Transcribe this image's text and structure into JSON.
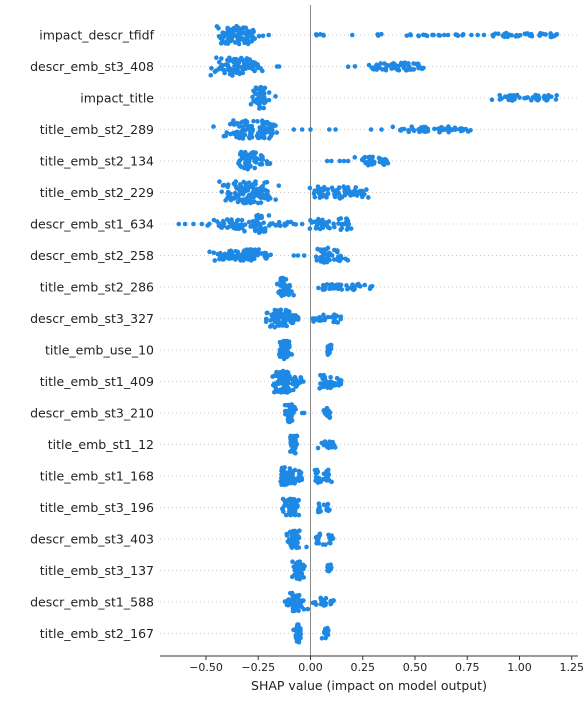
{
  "chart_data": {
    "type": "scatter",
    "title": "",
    "xlabel": "SHAP value (impact on model output)",
    "ylabel": "",
    "xlim": [
      -0.72,
      1.28
    ],
    "xticks": [
      -0.5,
      -0.25,
      0.0,
      0.25,
      0.5,
      0.75,
      1.0,
      1.25
    ],
    "xtick_labels": [
      "−0.50",
      "−0.25",
      "0.00",
      "0.25",
      "0.50",
      "0.75",
      "1.00",
      "1.25"
    ],
    "grid": false,
    "legend": "none",
    "point_color": "#1e88e5",
    "zero_line_color": "#888888",
    "row_guide_color": "#cccccc",
    "features": [
      {
        "name": "impact_descr_tfidf",
        "clusters": [
          [
            -0.36,
            0.06,
            70,
            9
          ],
          [
            -0.3,
            0.05,
            25,
            5
          ],
          [
            0.04,
            0.02,
            6,
            1
          ],
          [
            0.33,
            0.01,
            3,
            1
          ],
          [
            0.47,
            0.01,
            3,
            1
          ],
          [
            0.52,
            0.02,
            3,
            1
          ],
          [
            0.6,
            0.03,
            5,
            1
          ],
          [
            0.72,
            0.03,
            6,
            1
          ],
          [
            0.92,
            0.05,
            15,
            2
          ],
          [
            1.06,
            0.06,
            18,
            2
          ],
          [
            1.15,
            0.02,
            7,
            2
          ]
        ],
        "singles": [
          -0.2,
          0.2,
          0.55,
          0.64,
          0.7,
          0.77,
          0.8,
          0.83
        ]
      },
      {
        "name": "descr_emb_st3_408",
        "clusters": [
          [
            -0.36,
            0.07,
            80,
            9
          ],
          [
            -0.27,
            0.03,
            15,
            5
          ],
          [
            0.2,
            0.01,
            2,
            1
          ],
          [
            0.31,
            0.03,
            14,
            3
          ],
          [
            0.42,
            0.05,
            35,
            4
          ],
          [
            0.5,
            0.03,
            15,
            3
          ]
        ],
        "singles": [
          -0.16,
          -0.15
        ]
      },
      {
        "name": "impact_title",
        "clusters": [
          [
            -0.24,
            0.02,
            45,
            11
          ],
          [
            -0.2,
            0.03,
            6,
            3
          ],
          [
            0.97,
            0.07,
            25,
            3
          ],
          [
            1.08,
            0.05,
            15,
            3
          ],
          [
            1.15,
            0.03,
            8,
            3
          ]
        ],
        "singles": []
      },
      {
        "name": "title_emb_st2_289",
        "clusters": [
          [
            -0.28,
            0.08,
            90,
            9
          ],
          [
            -0.2,
            0.03,
            12,
            4
          ],
          [
            0.55,
            0.1,
            40,
            3
          ],
          [
            0.7,
            0.03,
            12,
            2
          ]
        ],
        "singles": [
          -0.08,
          -0.04,
          0.0,
          0.09,
          0.12,
          0.29,
          0.34
        ]
      },
      {
        "name": "title_emb_st2_134",
        "clusters": [
          [
            -0.3,
            0.04,
            55,
            9
          ],
          [
            -0.22,
            0.03,
            10,
            4
          ],
          [
            0.28,
            0.03,
            25,
            5
          ],
          [
            0.35,
            0.02,
            12,
            4
          ]
        ],
        "singles": [
          0.08,
          0.1,
          0.14,
          0.16,
          0.18
        ]
      },
      {
        "name": "title_emb_st2_229",
        "clusters": [
          [
            -0.32,
            0.07,
            100,
            11
          ],
          [
            -0.24,
            0.04,
            30,
            6
          ],
          [
            0.05,
            0.03,
            25,
            6
          ],
          [
            0.16,
            0.05,
            45,
            6
          ],
          [
            0.25,
            0.02,
            8,
            3
          ]
        ],
        "singles": []
      },
      {
        "name": "descr_emb_st1_634",
        "clusters": [
          [
            -0.43,
            0.04,
            20,
            4
          ],
          [
            -0.36,
            0.03,
            20,
            5
          ],
          [
            -0.25,
            0.03,
            40,
            9
          ],
          [
            -0.14,
            0.04,
            15,
            2
          ],
          [
            0.05,
            0.03,
            30,
            5
          ],
          [
            0.17,
            0.03,
            25,
            6
          ]
        ],
        "singles": [
          -0.63,
          -0.6,
          -0.56,
          -0.52,
          -0.08,
          -0.04
        ]
      },
      {
        "name": "descr_emb_st2_258",
        "clusters": [
          [
            -0.4,
            0.05,
            40,
            5
          ],
          [
            -0.3,
            0.04,
            45,
            6
          ],
          [
            -0.21,
            0.02,
            8,
            3
          ],
          [
            0.06,
            0.02,
            25,
            8
          ],
          [
            0.14,
            0.03,
            20,
            6
          ]
        ],
        "singles": [
          -0.08,
          -0.06,
          -0.03
        ]
      },
      {
        "name": "title_emb_st2_286",
        "clusters": [
          [
            -0.12,
            0.02,
            45,
            9
          ],
          [
            0.1,
            0.06,
            25,
            3
          ],
          [
            0.22,
            0.03,
            15,
            3
          ],
          [
            0.29,
            0.01,
            3,
            2
          ]
        ],
        "singles": []
      },
      {
        "name": "descr_emb_st3_327",
        "clusters": [
          [
            -0.15,
            0.04,
            70,
            9
          ],
          [
            -0.08,
            0.02,
            15,
            5
          ],
          [
            0.05,
            0.02,
            15,
            4
          ],
          [
            0.12,
            0.02,
            12,
            4
          ]
        ],
        "singles": [
          0.01,
          0.02,
          0.03
        ]
      },
      {
        "name": "title_emb_use_10",
        "clusters": [
          [
            -0.12,
            0.02,
            60,
            9
          ],
          [
            0.09,
            0.01,
            20,
            6
          ]
        ],
        "singles": []
      },
      {
        "name": "title_emb_st1_409",
        "clusters": [
          [
            -0.13,
            0.03,
            70,
            11
          ],
          [
            -0.06,
            0.02,
            25,
            5
          ],
          [
            0.08,
            0.02,
            30,
            7
          ],
          [
            0.13,
            0.02,
            12,
            4
          ]
        ],
        "singles": []
      },
      {
        "name": "descr_emb_st3_210",
        "clusters": [
          [
            -0.1,
            0.015,
            40,
            9
          ],
          [
            0.08,
            0.01,
            20,
            6
          ]
        ],
        "singles": [
          -0.04,
          -0.03
        ]
      },
      {
        "name": "title_emb_st1_12",
        "clusters": [
          [
            -0.08,
            0.01,
            40,
            9
          ],
          [
            0.07,
            0.02,
            12,
            4
          ],
          [
            0.11,
            0.01,
            5,
            3
          ]
        ],
        "singles": []
      },
      {
        "name": "title_emb_st1_168",
        "clusters": [
          [
            -0.13,
            0.01,
            30,
            9
          ],
          [
            -0.09,
            0.015,
            30,
            8
          ],
          [
            -0.05,
            0.01,
            15,
            5
          ],
          [
            0.03,
            0.01,
            15,
            7
          ],
          [
            0.08,
            0.01,
            15,
            7
          ]
        ],
        "singles": []
      },
      {
        "name": "title_emb_st3_196",
        "clusters": [
          [
            -0.09,
            0.025,
            60,
            9
          ],
          [
            0.04,
            0.01,
            10,
            5
          ],
          [
            0.08,
            0.01,
            10,
            4
          ]
        ],
        "singles": []
      },
      {
        "name": "descr_emb_st3_403",
        "clusters": [
          [
            -0.08,
            0.02,
            55,
            9
          ],
          [
            0.04,
            0.01,
            12,
            6
          ],
          [
            0.09,
            0.01,
            10,
            6
          ]
        ],
        "singles": []
      },
      {
        "name": "title_emb_st3_137",
        "clusters": [
          [
            -0.06,
            0.015,
            50,
            9
          ],
          [
            0.09,
            0.01,
            15,
            6
          ]
        ],
        "singles": []
      },
      {
        "name": "descr_emb_st1_588",
        "clusters": [
          [
            -0.07,
            0.025,
            50,
            9
          ],
          [
            -0.11,
            0.01,
            8,
            4
          ],
          [
            0.05,
            0.02,
            15,
            4
          ],
          [
            0.1,
            0.01,
            8,
            3
          ]
        ],
        "singles": []
      },
      {
        "name": "title_emb_st2_167",
        "clusters": [
          [
            -0.06,
            0.01,
            40,
            9
          ],
          [
            0.07,
            0.01,
            15,
            6
          ]
        ],
        "singles": []
      }
    ]
  }
}
